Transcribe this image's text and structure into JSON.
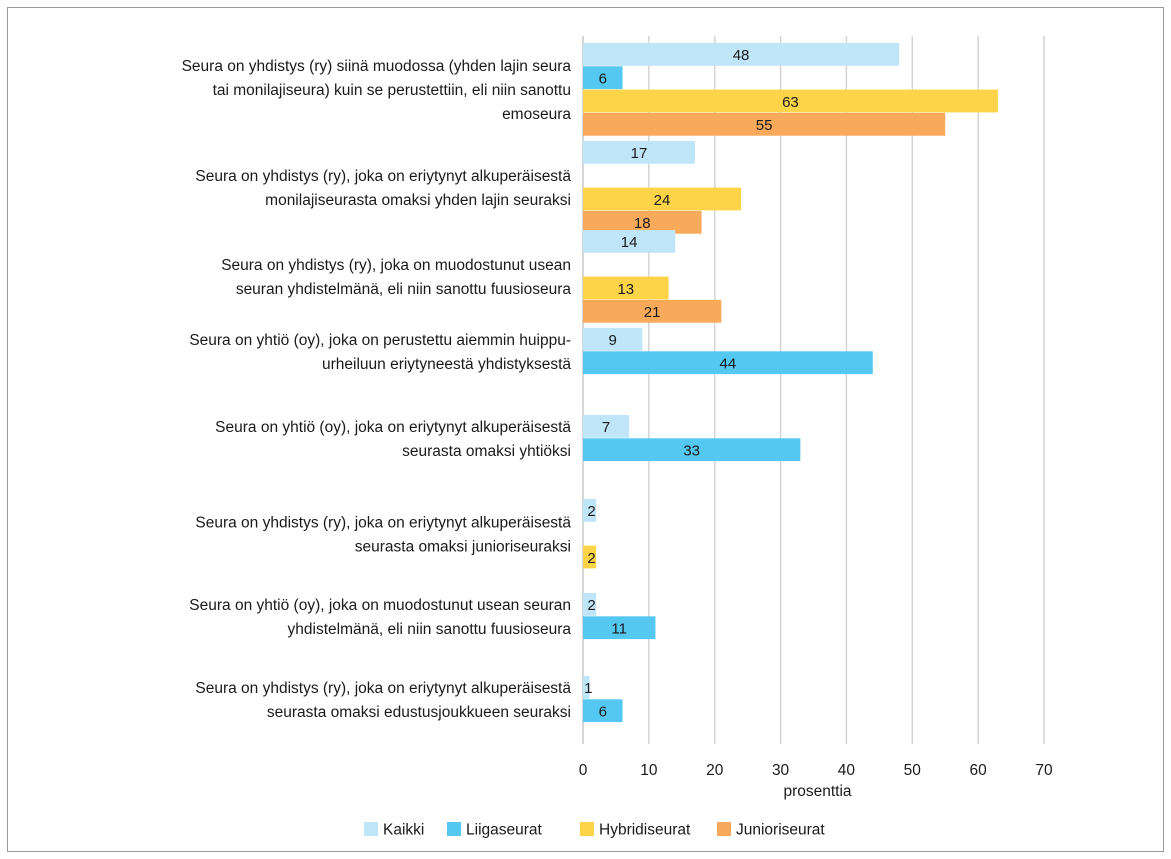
{
  "chart_data": {
    "type": "bar",
    "orientation": "horizontal",
    "title": "",
    "xlabel": "prosenttia",
    "ylabel": "",
    "xlim": [
      0,
      70
    ],
    "xticks": [
      0,
      10,
      20,
      30,
      40,
      50,
      60,
      70
    ],
    "grid": "vertical",
    "legend_position": "bottom",
    "categories": [
      [
        "Seura on yhdistys (ry) siinä muodossa (yhden lajin seura",
        "tai monilajiseura) kuin se perustettiin, eli niin sanottu",
        "emoseura"
      ],
      [
        "Seura on yhdistys (ry), joka on eriytynyt alkuperäisestä",
        "monilajiseurasta omaksi yhden lajin seuraksi"
      ],
      [
        "Seura on yhdistys (ry), joka on muodostunut usean",
        "seuran yhdistelmänä, eli niin sanottu fuusioseura"
      ],
      [
        "Seura on yhtiö (oy), joka on perustettu aiemmin huippu-",
        "urheiluun eriytyneestä yhdistyksestä"
      ],
      [
        "Seura on yhtiö (oy), joka on eriytynyt alkuperäisestä",
        "seurasta omaksi yhtiöksi"
      ],
      [
        "Seura on yhdistys (ry), joka on eriytynyt alkuperäisestä",
        "seurasta omaksi junioriseuraksi"
      ],
      [
        "Seura on yhtiö (oy), joka on muodostunut usean seuran",
        "yhdistelmänä, eli niin sanottu fuusioseura"
      ],
      [
        "Seura on yhdistys (ry), joka on eriytynyt alkuperäisestä",
        "seurasta omaksi edustusjoukkueen seuraksi"
      ]
    ],
    "series": [
      {
        "name": "Kaikki",
        "color": "#bfe6f8",
        "values": [
          48,
          17,
          14,
          9,
          7,
          2,
          2,
          1
        ]
      },
      {
        "name": "Liigaseurat",
        "color": "#55c8f2",
        "values": [
          6,
          null,
          null,
          44,
          33,
          null,
          11,
          6
        ]
      },
      {
        "name": "Hybridiseurat",
        "color": "#fdd447",
        "values": [
          63,
          24,
          13,
          null,
          null,
          2,
          null,
          null
        ]
      },
      {
        "name": "Junioriseurat",
        "color": "#f8a959",
        "values": [
          55,
          18,
          21,
          null,
          null,
          null,
          null,
          null
        ]
      }
    ]
  }
}
